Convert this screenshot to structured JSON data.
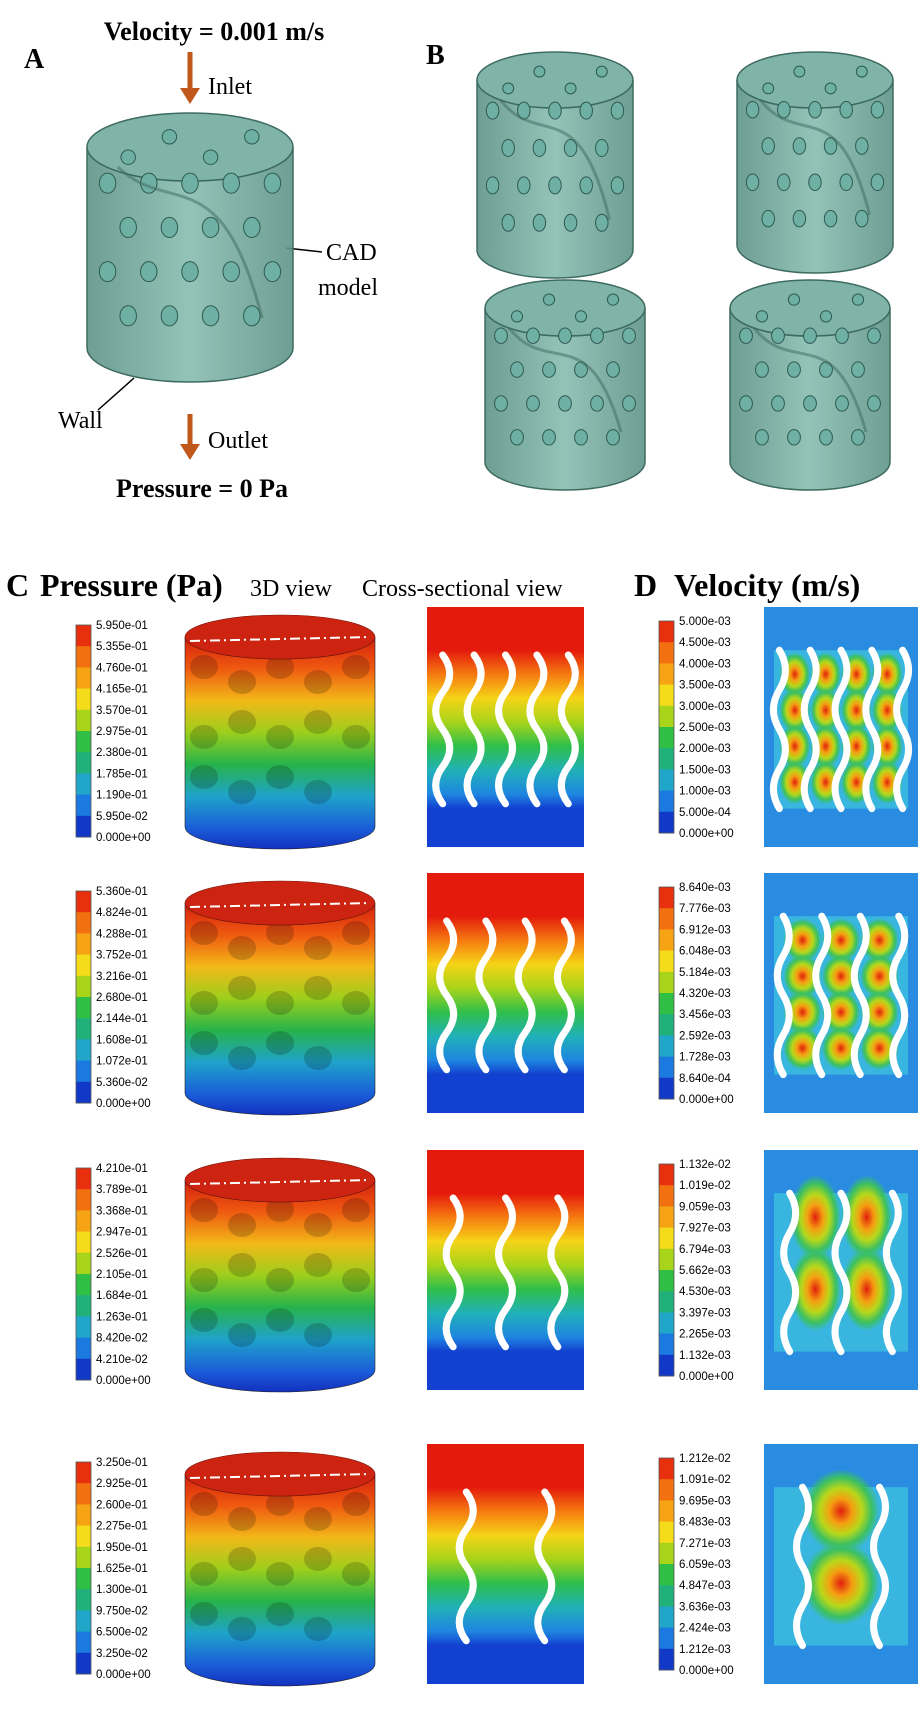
{
  "panel_a": {
    "label": "A",
    "velocity": "Velocity = 0.001 m/s",
    "inlet": "Inlet",
    "cad_line1": "CAD",
    "cad_line2": "model",
    "wall": "Wall",
    "outlet": "Outlet",
    "pressure": "Pressure = 0 Pa"
  },
  "panel_b": {
    "label": "B"
  },
  "panel_c": {
    "label": "C",
    "title": "Pressure (Pa)",
    "view_3d": "3D view",
    "view_cross": "Cross-sectional view",
    "colorbars": [
      [
        "5.950e-01",
        "5.355e-01",
        "4.760e-01",
        "4.165e-01",
        "3.570e-01",
        "2.975e-01",
        "2.380e-01",
        "1.785e-01",
        "1.190e-01",
        "5.950e-02",
        "0.000e+00"
      ],
      [
        "5.360e-01",
        "4.824e-01",
        "4.288e-01",
        "3.752e-01",
        "3.216e-01",
        "2.680e-01",
        "2.144e-01",
        "1.608e-01",
        "1.072e-01",
        "5.360e-02",
        "0.000e+00"
      ],
      [
        "4.210e-01",
        "3.789e-01",
        "3.368e-01",
        "2.947e-01",
        "2.526e-01",
        "2.105e-01",
        "1.684e-01",
        "1.263e-01",
        "8.420e-02",
        "4.210e-02",
        "0.000e+00"
      ],
      [
        "3.250e-01",
        "2.925e-01",
        "2.600e-01",
        "2.275e-01",
        "1.950e-01",
        "1.625e-01",
        "1.300e-01",
        "9.750e-02",
        "6.500e-02",
        "3.250e-02",
        "0.000e+00"
      ]
    ]
  },
  "panel_d": {
    "label": "D",
    "title": "Velocity (m/s)",
    "colorbars": [
      [
        "5.000e-03",
        "4.500e-03",
        "4.000e-03",
        "3.500e-03",
        "3.000e-03",
        "2.500e-03",
        "2.000e-03",
        "1.500e-03",
        "1.000e-03",
        "5.000e-04",
        "0.000e+00"
      ],
      [
        "8.640e-03",
        "7.776e-03",
        "6.912e-03",
        "6.048e-03",
        "5.184e-03",
        "4.320e-03",
        "3.456e-03",
        "2.592e-03",
        "1.728e-03",
        "8.640e-04",
        "0.000e+00"
      ],
      [
        "1.132e-02",
        "1.019e-02",
        "9.059e-03",
        "7.927e-03",
        "6.794e-03",
        "5.662e-03",
        "4.530e-03",
        "3.397e-03",
        "2.265e-03",
        "1.132e-03",
        "0.000e+00"
      ],
      [
        "1.212e-02",
        "1.091e-02",
        "9.695e-03",
        "8.483e-03",
        "7.271e-03",
        "6.059e-03",
        "4.847e-03",
        "3.636e-03",
        "2.424e-03",
        "1.212e-03",
        "0.000e+00"
      ]
    ]
  }
}
